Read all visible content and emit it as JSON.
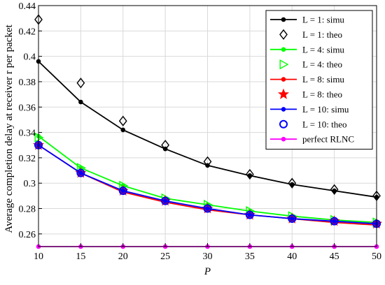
{
  "chart_data": {
    "type": "line",
    "xlabel": "P",
    "ylabel": "Average completion delay at receiver r per packet",
    "xlim": [
      10,
      50
    ],
    "ylim": [
      0.25,
      0.44
    ],
    "x_ticks": [
      "10",
      "15",
      "20",
      "25",
      "30",
      "35",
      "40",
      "45",
      "50"
    ],
    "y_ticks": [
      "0.26",
      "0.28",
      "0.3",
      "0.32",
      "0.34",
      "0.36",
      "0.38",
      "0.4",
      "0.42",
      "0.44"
    ],
    "grid": true,
    "legend_position": "top-right",
    "x": [
      10,
      15,
      20,
      25,
      30,
      35,
      40,
      45,
      50
    ],
    "series": [
      {
        "name": "L = 1: simu",
        "color": "#000000",
        "style": "line-dot",
        "values": [
          0.396,
          0.364,
          0.342,
          0.327,
          0.314,
          0.306,
          0.299,
          0.294,
          0.289
        ]
      },
      {
        "name": "L = 1: theo",
        "color": "#000000",
        "style": "diamond",
        "values": [
          0.429,
          0.379,
          0.349,
          0.33,
          0.317,
          0.307,
          0.3,
          0.295,
          0.29
        ]
      },
      {
        "name": "L = 4: simu",
        "color": "#00ff00",
        "style": "line-dot",
        "values": [
          0.337,
          0.312,
          0.298,
          0.288,
          0.283,
          0.278,
          0.274,
          0.271,
          0.269
        ]
      },
      {
        "name": "L = 4: theo",
        "color": "#00ff00",
        "style": "triangle-right",
        "values": [
          0.336,
          0.312,
          0.298,
          0.288,
          0.283,
          0.278,
          0.274,
          0.271,
          0.269
        ]
      },
      {
        "name": "L = 8: simu",
        "color": "#ff0000",
        "style": "line-dot",
        "values": [
          0.33,
          0.308,
          0.293,
          0.285,
          0.279,
          0.275,
          0.272,
          0.269,
          0.267
        ]
      },
      {
        "name": "L = 8: theo",
        "color": "#ff0000",
        "style": "star",
        "values": [
          0.33,
          0.308,
          0.294,
          0.286,
          0.28,
          0.275,
          0.272,
          0.27,
          0.268
        ]
      },
      {
        "name": "L = 10: simu",
        "color": "#0000ff",
        "style": "line-dot",
        "values": [
          0.33,
          0.308,
          0.294,
          0.286,
          0.28,
          0.275,
          0.272,
          0.27,
          0.268
        ]
      },
      {
        "name": "L = 10: theo",
        "color": "#0000ff",
        "style": "circle",
        "values": [
          0.33,
          0.308,
          0.294,
          0.286,
          0.28,
          0.275,
          0.272,
          0.27,
          0.268
        ]
      },
      {
        "name": "perfect RLNC",
        "color": "#ff00ff",
        "style": "line-dot",
        "values": [
          0.25,
          0.25,
          0.25,
          0.25,
          0.25,
          0.25,
          0.25,
          0.25,
          0.25
        ]
      }
    ]
  }
}
